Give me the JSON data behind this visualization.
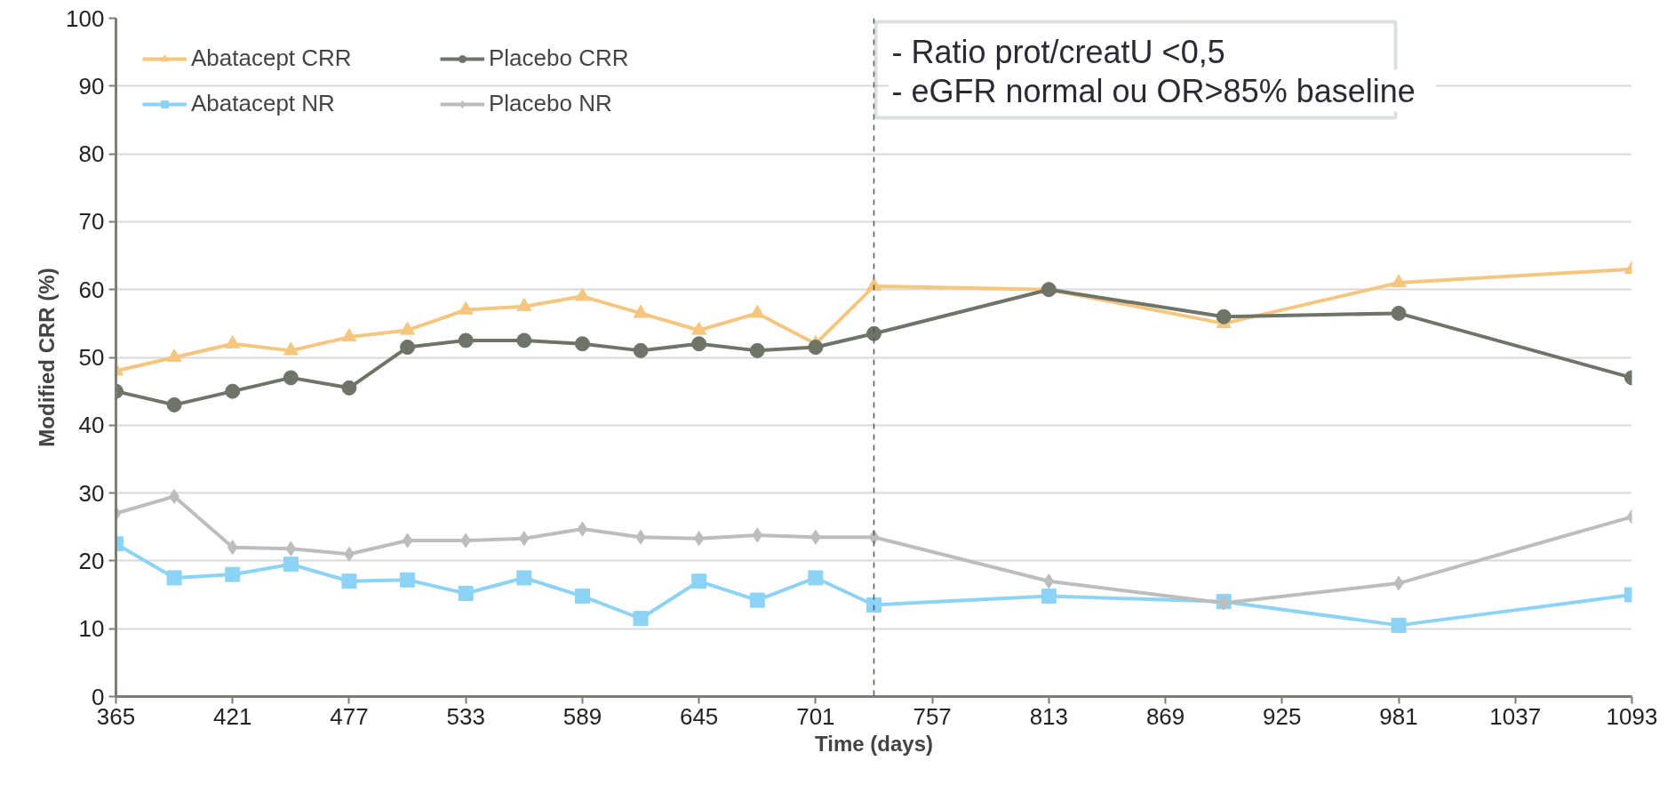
{
  "chart_data": {
    "type": "line",
    "xlabel": "Time (days)",
    "ylabel": "Modified CRR (%)",
    "xlim": [
      365,
      1093
    ],
    "xticks": [
      365,
      421,
      477,
      533,
      589,
      645,
      701,
      757,
      813,
      869,
      925,
      981,
      1037,
      1093
    ],
    "ylim": [
      0,
      100
    ],
    "yticks": [
      0,
      10,
      20,
      30,
      40,
      50,
      60,
      70,
      80,
      90,
      100
    ],
    "grid": "y",
    "legend": "top left",
    "line_style": "solid",
    "x": [
      365,
      393,
      421,
      449,
      477,
      505,
      533,
      561,
      589,
      617,
      645,
      673,
      701,
      729,
      813,
      897,
      981,
      1093
    ],
    "series": [
      {
        "name": "Abatacept CRR",
        "color": "#f5c67f",
        "marker": "triangle",
        "values": [
          48,
          50,
          52,
          51,
          53,
          54,
          57,
          57.5,
          59,
          56.5,
          54,
          56.5,
          52,
          60.5,
          60,
          55,
          61,
          63
        ]
      },
      {
        "name": "Placebo CRR",
        "color": "#6e7468",
        "marker": "circle",
        "values": [
          45,
          43,
          45,
          47,
          45.5,
          51.5,
          52.5,
          52.5,
          52,
          51,
          52,
          51,
          51.5,
          53.5,
          60,
          56,
          56.5,
          47
        ]
      },
      {
        "name": "Abatacept NR",
        "color": "#8dd3f5",
        "marker": "square",
        "values": [
          22.5,
          17.5,
          18,
          19.5,
          17,
          17.2,
          15.2,
          17.5,
          14.8,
          11.5,
          17,
          14.2,
          17.5,
          13.5,
          14.8,
          14,
          10.5,
          15
        ]
      },
      {
        "name": "Placebo NR",
        "color": "#bdbdbd",
        "marker": "diamond",
        "values": [
          27,
          29.5,
          22,
          21.8,
          21,
          23,
          23,
          23.3,
          24.7,
          23.5,
          23.3,
          23.8,
          23.5,
          23.5,
          17,
          13.8,
          16.7,
          26.5
        ]
      }
    ],
    "ref_lines": [
      {
        "axis": "x",
        "value": 729,
        "color": "#555555",
        "line_style": "dashed"
      }
    ],
    "annotations": [
      "-   Ratio prot/creatU <0,5",
      "-   eGFR normal ou OR>85% baseline"
    ]
  }
}
